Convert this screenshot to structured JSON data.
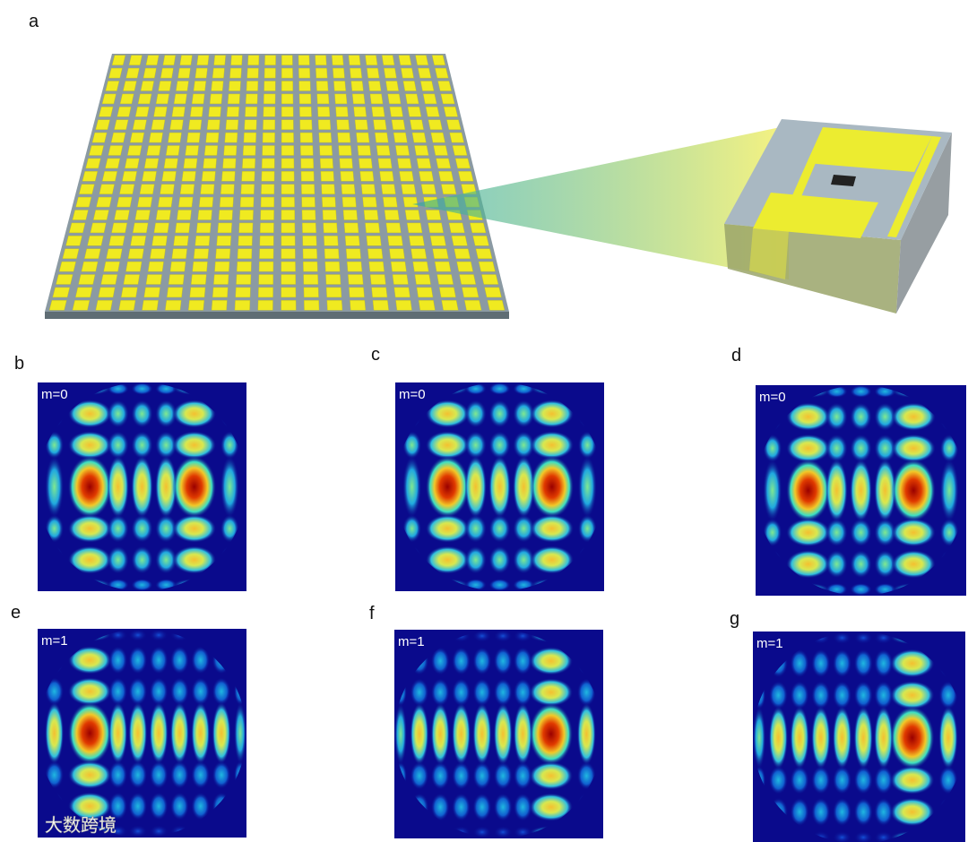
{
  "panel_a": {
    "label": "a"
  },
  "panels": [
    {
      "label": "b",
      "mode": "m=0"
    },
    {
      "label": "c",
      "mode": "m=0"
    },
    {
      "label": "d",
      "mode": "m=0"
    },
    {
      "label": "e",
      "mode": "m=1"
    },
    {
      "label": "f",
      "mode": "m=1"
    },
    {
      "label": "g",
      "mode": "m=1"
    }
  ],
  "watermark": "大数跨境"
}
